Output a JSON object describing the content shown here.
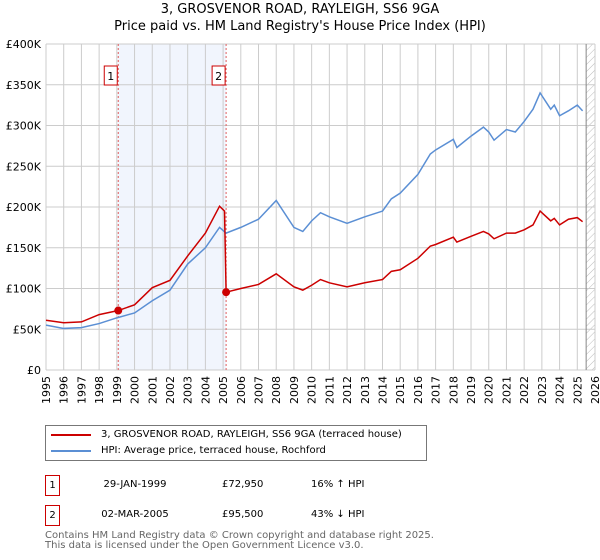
{
  "title": "3, GROSVENOR ROAD, RAYLEIGH, SS6 9GA",
  "subtitle": "Price paid vs. HM Land Registry's House Price Index (HPI)",
  "chart_data": {
    "type": "line",
    "ylim": [
      0,
      400000
    ],
    "xlim": [
      1995,
      2026
    ],
    "yticks": [
      "£0",
      "£50K",
      "£100K",
      "£150K",
      "£200K",
      "£250K",
      "£300K",
      "£350K",
      "£400K"
    ],
    "xticks": [
      "1995",
      "1996",
      "1997",
      "1998",
      "1999",
      "2000",
      "2001",
      "2002",
      "2003",
      "2004",
      "2005",
      "2006",
      "2007",
      "2008",
      "2009",
      "2010",
      "2011",
      "2012",
      "2013",
      "2014",
      "2015",
      "2016",
      "2017",
      "2018",
      "2019",
      "2020",
      "2021",
      "2022",
      "2023",
      "2024",
      "2025",
      "2026"
    ],
    "forecast_start": 2025.5,
    "series": [
      {
        "name": "3, GROSVENOR ROAD, RAYLEIGH, SS6 9GA (terraced house)",
        "color": "#cc0000",
        "x": [
          1995,
          1996,
          1997,
          1998,
          1999.08,
          2000,
          2001,
          2002,
          2003,
          2004,
          2004.8,
          2005.08,
          2005.17,
          2006,
          2007,
          2008,
          2009,
          2009.5,
          2010,
          2010.5,
          2011,
          2012,
          2013,
          2014,
          2014.5,
          2015,
          2016,
          2016.7,
          2017,
          2018,
          2018.2,
          2019,
          2019.7,
          2020,
          2020.3,
          2021,
          2021.5,
          2022,
          2022.5,
          2022.9,
          2023.5,
          2023.7,
          2024,
          2024.5,
          2025,
          2025.3
        ],
        "y": [
          61000,
          58000,
          59000,
          68000,
          72950,
          80000,
          101000,
          110000,
          140000,
          168000,
          201000,
          195000,
          95500,
          100000,
          105000,
          118000,
          102000,
          98000,
          104000,
          111000,
          107000,
          102000,
          107000,
          111000,
          121000,
          123000,
          137000,
          152000,
          154000,
          163000,
          157000,
          164000,
          170000,
          167000,
          161000,
          168000,
          168000,
          172000,
          178000,
          195000,
          183000,
          186000,
          178000,
          185000,
          187000,
          182000
        ]
      },
      {
        "name": "HPI: Average price, terraced house, Rochford",
        "color": "#5b8fd4",
        "x": [
          1995,
          1996,
          1997,
          1998,
          1999,
          2000,
          2001,
          2002,
          2003,
          2004,
          2004.8,
          2005.17,
          2006,
          2007,
          2008,
          2009,
          2009.5,
          2010,
          2010.5,
          2011,
          2012,
          2013,
          2014,
          2014.5,
          2015,
          2016,
          2016.7,
          2017,
          2018,
          2018.2,
          2019,
          2019.7,
          2020,
          2020.3,
          2021,
          2021.5,
          2022,
          2022.5,
          2022.9,
          2023.5,
          2023.7,
          2024,
          2024.5,
          2025,
          2025.3
        ],
        "y": [
          55000,
          51000,
          52000,
          57000,
          64000,
          70000,
          85000,
          98000,
          130000,
          150000,
          175000,
          168000,
          175000,
          185000,
          208000,
          175000,
          170000,
          183000,
          193000,
          188000,
          180000,
          188000,
          195000,
          210000,
          217000,
          240000,
          265000,
          270000,
          283000,
          273000,
          287000,
          298000,
          292000,
          282000,
          295000,
          292000,
          305000,
          320000,
          340000,
          320000,
          325000,
          312000,
          318000,
          325000,
          318000
        ]
      }
    ],
    "sales": [
      {
        "label": "1",
        "x": 1999.08,
        "y": 72950
      },
      {
        "label": "2",
        "x": 2005.17,
        "y": 95500
      }
    ]
  },
  "table": [
    {
      "num": "1",
      "date": "29-JAN-1999",
      "price": "£72,950",
      "hpi": "16% ↑ HPI"
    },
    {
      "num": "2",
      "date": "02-MAR-2005",
      "price": "£95,500",
      "hpi": "43% ↓ HPI"
    }
  ],
  "footer": [
    "Contains HM Land Registry data © Crown copyright and database right 2025.",
    "This data is licensed under the Open Government Licence v3.0."
  ]
}
